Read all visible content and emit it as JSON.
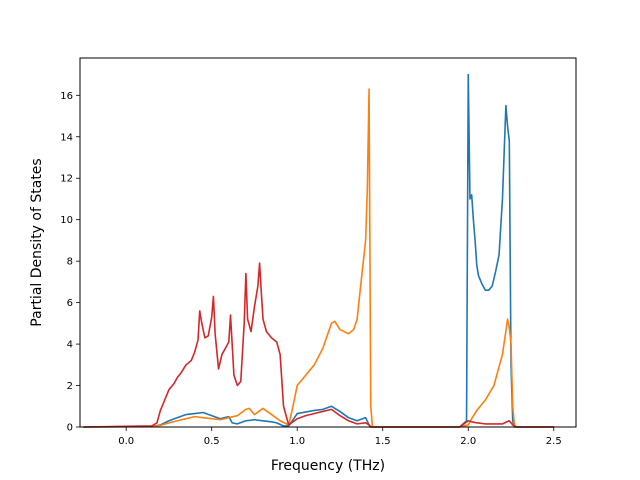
{
  "chart_data": {
    "type": "line",
    "title": "",
    "xlabel": "Frequency (THz)",
    "ylabel": "Partial Density of States",
    "xlim": [
      -0.27,
      2.63
    ],
    "ylim": [
      0,
      17.8
    ],
    "xticks": [
      0.0,
      0.5,
      1.0,
      1.5,
      2.0,
      2.5
    ],
    "xtick_labels": [
      "0.0",
      "0.5",
      "1.0",
      "1.5",
      "2.0",
      "2.5"
    ],
    "yticks": [
      0,
      2,
      4,
      6,
      8,
      10,
      12,
      14,
      16
    ],
    "ytick_labels": [
      "0",
      "2",
      "4",
      "6",
      "8",
      "10",
      "12",
      "14",
      "16"
    ],
    "grid": false,
    "legend": false,
    "series": [
      {
        "color": "#1f77b4",
        "x": [
          -0.25,
          0.15,
          0.2,
          0.25,
          0.3,
          0.35,
          0.4,
          0.45,
          0.5,
          0.55,
          0.6,
          0.62,
          0.65,
          0.7,
          0.75,
          0.8,
          0.85,
          0.88,
          0.92,
          0.95,
          0.98,
          1.0,
          1.1,
          1.15,
          1.2,
          1.25,
          1.3,
          1.35,
          1.4,
          1.42,
          1.43,
          1.5,
          1.95,
          1.99,
          2.0,
          2.01,
          2.02,
          2.03,
          2.04,
          2.05,
          2.06,
          2.08,
          2.1,
          2.12,
          2.14,
          2.16,
          2.18,
          2.2,
          2.22,
          2.23,
          2.24,
          2.25,
          2.26,
          2.27,
          2.28,
          2.3,
          2.5
        ],
        "y": [
          0,
          0.02,
          0.1,
          0.3,
          0.45,
          0.6,
          0.65,
          0.7,
          0.55,
          0.4,
          0.5,
          0.2,
          0.15,
          0.3,
          0.35,
          0.3,
          0.25,
          0.2,
          0.05,
          0.05,
          0.4,
          0.65,
          0.8,
          0.85,
          1.0,
          0.75,
          0.45,
          0.3,
          0.45,
          0.1,
          0.0,
          0.0,
          0.0,
          0.3,
          17.0,
          11.0,
          11.2,
          10.0,
          9.0,
          7.8,
          7.3,
          6.9,
          6.6,
          6.6,
          6.8,
          7.5,
          8.3,
          11.0,
          15.5,
          14.5,
          13.8,
          3.0,
          0.3,
          0.0,
          0.0,
          0.0,
          0.0
        ]
      },
      {
        "color": "#ff7f0e",
        "x": [
          -0.25,
          0.15,
          0.2,
          0.25,
          0.3,
          0.35,
          0.4,
          0.45,
          0.5,
          0.55,
          0.6,
          0.65,
          0.7,
          0.72,
          0.75,
          0.8,
          0.85,
          0.9,
          0.95,
          0.97,
          1.0,
          1.05,
          1.1,
          1.15,
          1.2,
          1.22,
          1.25,
          1.3,
          1.33,
          1.35,
          1.38,
          1.4,
          1.41,
          1.42,
          1.43,
          1.44,
          1.5,
          1.95,
          2.0,
          2.02,
          2.05,
          2.1,
          2.15,
          2.2,
          2.23,
          2.24,
          2.25,
          2.26,
          2.27,
          2.28,
          2.3,
          2.5
        ],
        "y": [
          0,
          0.02,
          0.08,
          0.2,
          0.3,
          0.4,
          0.5,
          0.45,
          0.4,
          0.35,
          0.45,
          0.55,
          0.85,
          0.9,
          0.6,
          0.9,
          0.6,
          0.3,
          0.1,
          0.8,
          2.0,
          2.5,
          3.0,
          3.8,
          5.0,
          5.1,
          4.7,
          4.5,
          4.7,
          5.2,
          7.5,
          9.0,
          11.5,
          16.3,
          1.0,
          0.0,
          0.0,
          0.0,
          0.1,
          0.4,
          0.8,
          1.3,
          2.0,
          3.5,
          5.2,
          4.8,
          4.0,
          1.0,
          0.1,
          0.0,
          0.0,
          0.0
        ]
      },
      {
        "color": "#d62728",
        "x": [
          -0.25,
          0.15,
          0.18,
          0.2,
          0.22,
          0.25,
          0.28,
          0.3,
          0.32,
          0.35,
          0.38,
          0.4,
          0.42,
          0.43,
          0.44,
          0.46,
          0.48,
          0.5,
          0.51,
          0.52,
          0.54,
          0.56,
          0.58,
          0.6,
          0.61,
          0.63,
          0.65,
          0.67,
          0.69,
          0.7,
          0.71,
          0.73,
          0.75,
          0.77,
          0.78,
          0.79,
          0.8,
          0.82,
          0.85,
          0.88,
          0.9,
          0.92,
          0.95,
          1.0,
          1.05,
          1.1,
          1.15,
          1.2,
          1.25,
          1.3,
          1.35,
          1.4,
          1.42,
          1.43,
          1.5,
          1.95,
          2.0,
          2.02,
          2.05,
          2.1,
          2.15,
          2.2,
          2.24,
          2.26,
          2.28,
          2.3,
          2.5
        ],
        "y": [
          0,
          0.05,
          0.2,
          0.8,
          1.2,
          1.8,
          2.1,
          2.4,
          2.6,
          3.0,
          3.2,
          3.6,
          4.2,
          5.6,
          5.1,
          4.3,
          4.4,
          5.3,
          6.3,
          4.5,
          2.8,
          3.5,
          3.8,
          4.1,
          5.4,
          2.5,
          2.0,
          2.2,
          5.0,
          7.4,
          5.2,
          4.6,
          5.8,
          6.8,
          7.9,
          6.5,
          5.2,
          4.6,
          4.3,
          4.1,
          3.5,
          1.0,
          0.1,
          0.4,
          0.55,
          0.65,
          0.75,
          0.85,
          0.55,
          0.3,
          0.15,
          0.2,
          0.1,
          0.0,
          0.0,
          0.0,
          0.3,
          0.25,
          0.2,
          0.15,
          0.15,
          0.15,
          0.3,
          0.1,
          0.0,
          0.0,
          0.0
        ]
      }
    ]
  }
}
